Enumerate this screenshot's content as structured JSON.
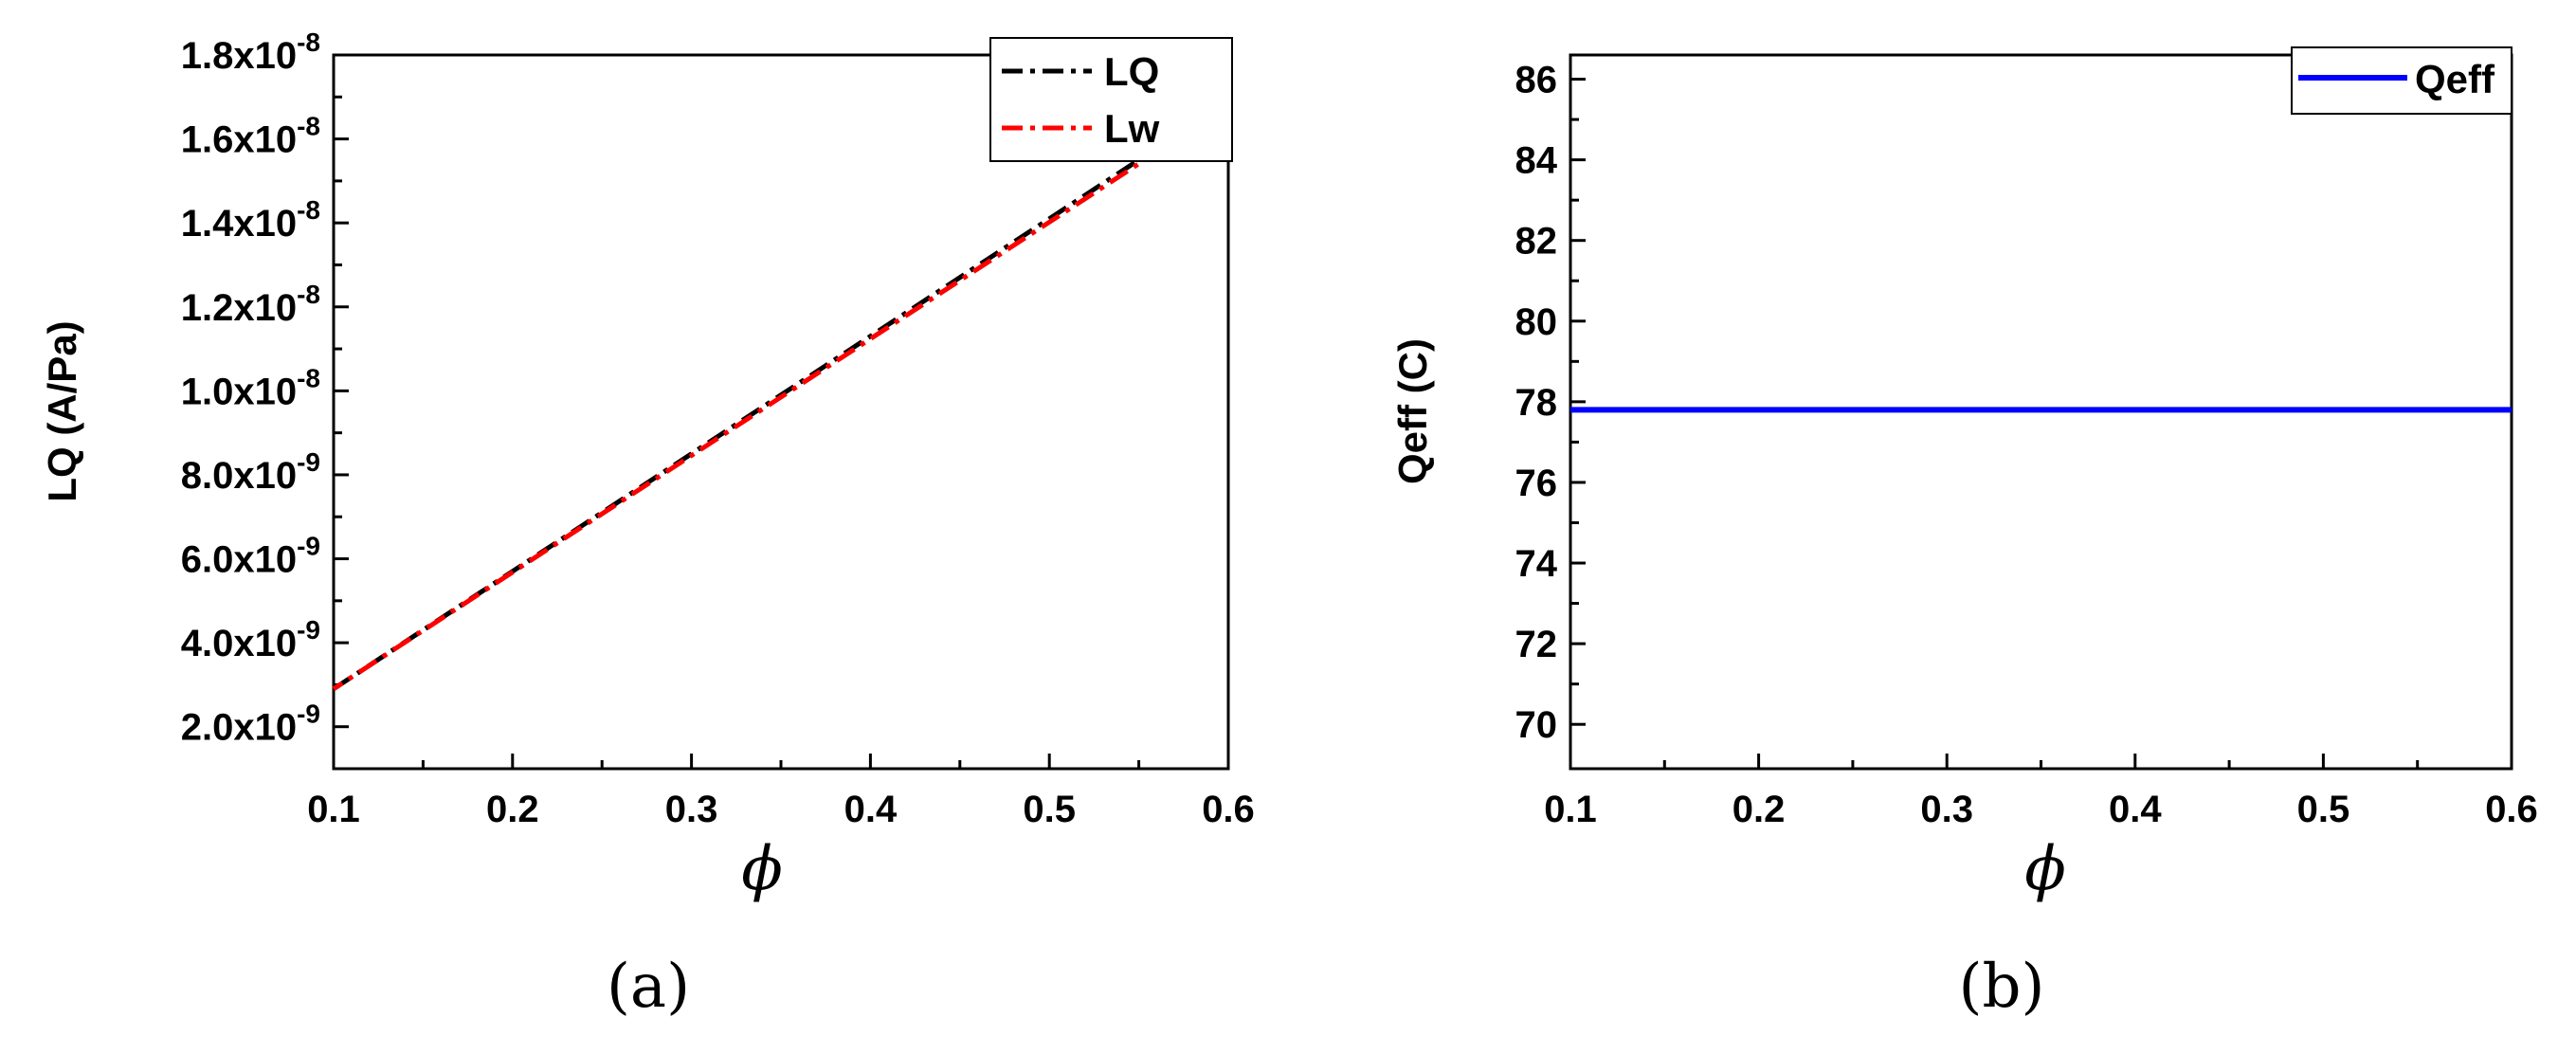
{
  "chart_data": [
    {
      "type": "line",
      "panel_label": "(a)",
      "xlabel": "ϕ",
      "ylabel": "LQ (A/Pa)",
      "xlim": [
        0.1,
        0.6
      ],
      "ylim": [
        1e-09,
        1.8e-08
      ],
      "x_ticks": [
        0.1,
        0.2,
        0.3,
        0.4,
        0.5,
        0.6
      ],
      "x_tick_labels": [
        "0.1",
        "0.2",
        "0.3",
        "0.4",
        "0.5",
        "0.6"
      ],
      "y_ticks": [
        2e-09,
        4e-09,
        6e-09,
        8e-09,
        1e-08,
        1.2e-08,
        1.4e-08,
        1.6e-08,
        1.8e-08
      ],
      "y_tick_labels": [
        {
          "mantissa": "2.0x10",
          "exp": "-9"
        },
        {
          "mantissa": "4.0x10",
          "exp": "-9"
        },
        {
          "mantissa": "6.0x10",
          "exp": "-9"
        },
        {
          "mantissa": "8.0x10",
          "exp": "-9"
        },
        {
          "mantissa": "1.0x10",
          "exp": "-8"
        },
        {
          "mantissa": "1.2x10",
          "exp": "-8"
        },
        {
          "mantissa": "1.4x10",
          "exp": "-8"
        },
        {
          "mantissa": "1.6x10",
          "exp": "-8"
        },
        {
          "mantissa": "1.8x10",
          "exp": "-8"
        }
      ],
      "legend_position": "top-right",
      "grid": false,
      "series": [
        {
          "name": "LQ",
          "color": "#000000",
          "style": "dash-dot",
          "x": [
            0.1,
            0.6
          ],
          "values": [
            2.9e-09,
            1.69e-08
          ]
        },
        {
          "name": "Lw",
          "color": "#ff0000",
          "style": "dash-dot",
          "x": [
            0.1,
            0.6
          ],
          "values": [
            2.9e-09,
            1.68e-08
          ]
        }
      ]
    },
    {
      "type": "line",
      "panel_label": "(b)",
      "xlabel": "ϕ",
      "ylabel": "Qeff (C)",
      "xlim": [
        0.1,
        0.6
      ],
      "ylim": [
        68.9,
        86.6
      ],
      "x_ticks": [
        0.1,
        0.2,
        0.3,
        0.4,
        0.5,
        0.6
      ],
      "x_tick_labels": [
        "0.1",
        "0.2",
        "0.3",
        "0.4",
        "0.5",
        "0.6"
      ],
      "y_ticks": [
        70,
        72,
        74,
        76,
        78,
        80,
        82,
        84,
        86
      ],
      "y_tick_labels": [
        "70",
        "72",
        "74",
        "76",
        "78",
        "80",
        "82",
        "84",
        "86"
      ],
      "legend_position": "top-right",
      "grid": false,
      "series": [
        {
          "name": "Qeff",
          "color": "#0000ff",
          "style": "solid",
          "x": [
            0.1,
            0.6
          ],
          "values": [
            77.8,
            77.8
          ]
        }
      ]
    }
  ]
}
